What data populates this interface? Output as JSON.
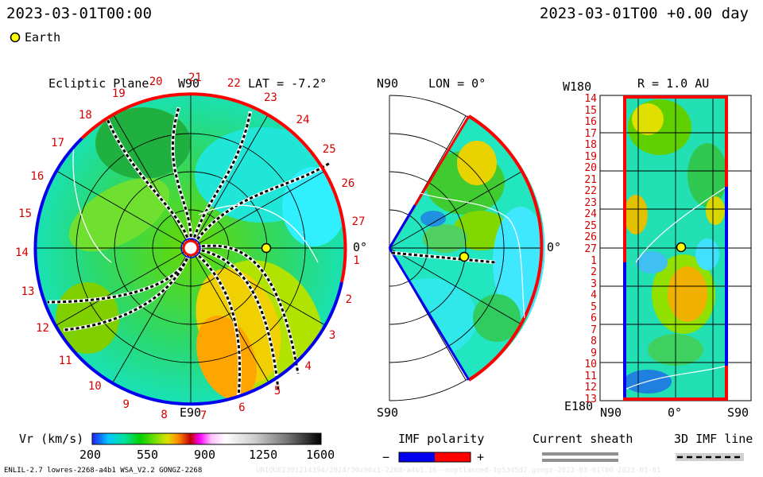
{
  "header": {
    "date_left": "2023-03-01T00:00",
    "date_right": "2023-03-01T00 +0.00 day"
  },
  "legend": {
    "earth_label": "Earth",
    "earth_color": "#ffff00"
  },
  "panels": {
    "ecliptic": {
      "title": "Ecliptic Plane",
      "lat_text": "LAT = -7.2°",
      "top_label": "W90",
      "bottom_label": "E90",
      "right_label": "0°",
      "carrington_labels": [
        "20",
        "21",
        "22",
        "23",
        "24",
        "25",
        "26",
        "27",
        "1",
        "2",
        "3",
        "4",
        "5",
        "6",
        "7",
        "8",
        "9",
        "10",
        "11",
        "12",
        "13",
        "14",
        "15",
        "16",
        "17",
        "18",
        "19"
      ]
    },
    "meridional": {
      "lon_text": "LON = 0°",
      "top_label": "N90",
      "bottom_label": "S90",
      "right_label": "0°"
    },
    "synoptic": {
      "r_text": "R = 1.0 AU",
      "top_left": "W180",
      "bottom_left": "E180",
      "x_labels": [
        "N90",
        "0°",
        "S90"
      ],
      "y_labels": [
        "14",
        "15",
        "16",
        "17",
        "18",
        "19",
        "20",
        "21",
        "22",
        "23",
        "24",
        "25",
        "26",
        "27",
        "1",
        "2",
        "3",
        "4",
        "5",
        "6",
        "7",
        "8",
        "9",
        "10",
        "11",
        "12",
        "13"
      ]
    }
  },
  "colorbar": {
    "label": "Vr (km/s)",
    "ticks": [
      "200",
      "550",
      "900",
      "1250",
      "1600"
    ],
    "colors": [
      "#2020ff",
      "#00c8ff",
      "#00e0a0",
      "#00d000",
      "#80e000",
      "#e0e000",
      "#ff8000",
      "#c00000",
      "#ff00ff",
      "#ffc0ff",
      "#ffffff",
      "#c8c8c8",
      "#909090",
      "#505050",
      "#000000"
    ]
  },
  "imf": {
    "title": "IMF polarity",
    "minus": "−",
    "plus": "+",
    "neg_color": "#0000ee",
    "pos_color": "#ff0000"
  },
  "sheath": {
    "title": "Current sheath"
  },
  "imf3d": {
    "title": "3D IMF line"
  },
  "footer": {
    "left": "ENLIL-2.7 lowres-2268-a4b1 WSA_V2.2 GONGZ-2268",
    "right": "UNIQUE2301214394/2024/30x90x1-2268-a4b1.16--noptlanned-1g53d5d2.gongz-2023-03-01T00   2023-03-01"
  }
}
